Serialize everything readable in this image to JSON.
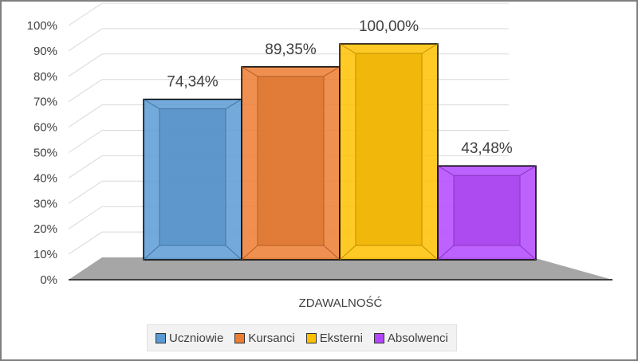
{
  "chart_data": {
    "type": "bar",
    "categories": [
      "ZDAWALNOŚĆ"
    ],
    "series": [
      {
        "name": "Uczniowie",
        "values": [
          74.34
        ],
        "label": "74,34%",
        "color": "#5b9bd5"
      },
      {
        "name": "Kursanci",
        "values": [
          89.35
        ],
        "label": "89,35%",
        "color": "#ed7d31"
      },
      {
        "name": "Eksterni",
        "values": [
          100.0
        ],
        "label": "100,00%",
        "color": "#ffc000"
      },
      {
        "name": "Absolwenci",
        "values": [
          43.48
        ],
        "label": "43,48%",
        "color": "#b347ff"
      }
    ],
    "yticks": [
      "0%",
      "10%",
      "20%",
      "30%",
      "40%",
      "50%",
      "60%",
      "70%",
      "80%",
      "90%",
      "100%"
    ],
    "ylim": [
      0,
      100
    ],
    "xlabel": "ZDAWALNOŚĆ",
    "legend_position": "bottom",
    "style": "3d-clustered-column"
  }
}
